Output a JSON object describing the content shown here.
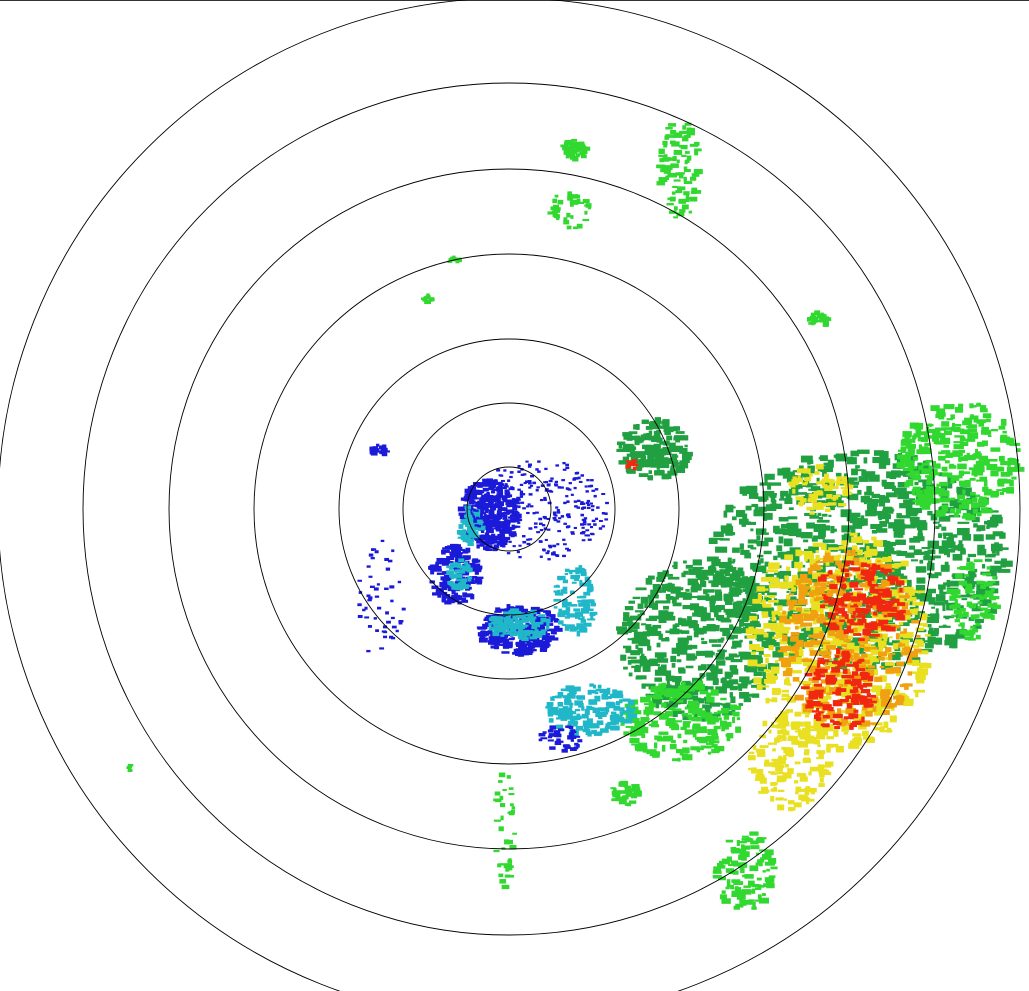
{
  "radar": {
    "product": "reflectivity-ppi",
    "range_rings": 7,
    "ring_color": "#000000",
    "background": "#ffffff",
    "palette": {
      "very_light": "#1a1ad8",
      "light": "#20b8c8",
      "moderate_low": "#20a040",
      "moderate": "#30d830",
      "heavy_low": "#e8e020",
      "heavy": "#f0a010",
      "very_heavy": "#f02810"
    }
  }
}
